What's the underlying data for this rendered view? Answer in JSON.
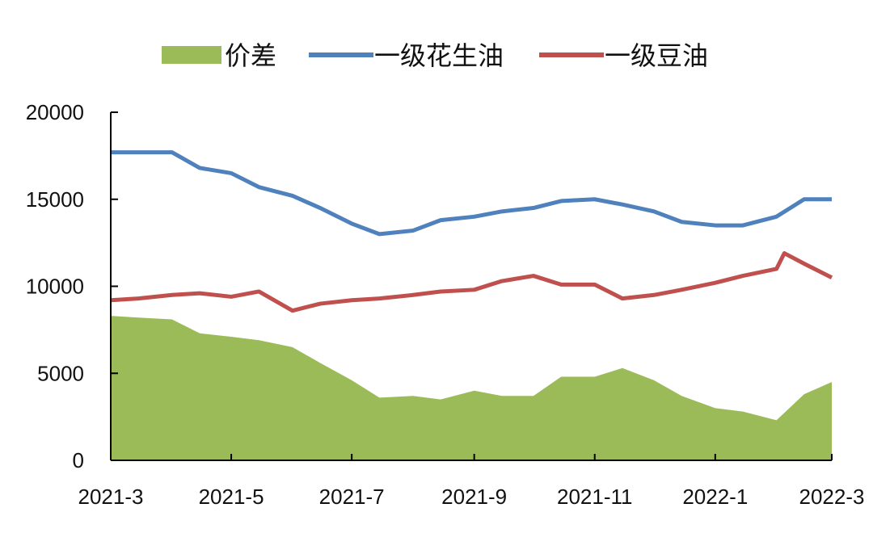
{
  "chart_data": {
    "type": "area+line",
    "title": "",
    "xlabel": "",
    "ylabel": "",
    "ylim": [
      0,
      20000
    ],
    "yticks": [
      0,
      5000,
      10000,
      15000,
      20000
    ],
    "xticks": [
      "2021-3",
      "2021-5",
      "2021-7",
      "2021-9",
      "2021-11",
      "2022-1",
      "2022-3"
    ],
    "grid": false,
    "legend_position": "top",
    "series": [
      {
        "name": "价差",
        "kind": "area",
        "color": "#9bbb59",
        "points": [
          [
            "2021-03-01",
            8300
          ],
          [
            "2021-03-15",
            8200
          ],
          [
            "2021-04-01",
            8100
          ],
          [
            "2021-04-15",
            7300
          ],
          [
            "2021-05-01",
            7100
          ],
          [
            "2021-05-15",
            6900
          ],
          [
            "2021-06-01",
            6500
          ],
          [
            "2021-06-15",
            5600
          ],
          [
            "2021-07-01",
            4600
          ],
          [
            "2021-07-15",
            3600
          ],
          [
            "2021-08-01",
            3700
          ],
          [
            "2021-08-15",
            3500
          ],
          [
            "2021-09-01",
            4000
          ],
          [
            "2021-09-15",
            3700
          ],
          [
            "2021-10-01",
            3700
          ],
          [
            "2021-10-15",
            4800
          ],
          [
            "2021-11-01",
            4800
          ],
          [
            "2021-11-15",
            5300
          ],
          [
            "2021-12-01",
            4600
          ],
          [
            "2021-12-15",
            3700
          ],
          [
            "2022-01-01",
            3000
          ],
          [
            "2022-01-15",
            2800
          ],
          [
            "2022-02-01",
            2300
          ],
          [
            "2022-02-15",
            3800
          ],
          [
            "2022-03-01",
            4500
          ]
        ]
      },
      {
        "name": "一级花生油",
        "kind": "line",
        "color": "#4f81bd",
        "points": [
          [
            "2021-03-01",
            17700
          ],
          [
            "2021-03-15",
            17700
          ],
          [
            "2021-04-01",
            17700
          ],
          [
            "2021-04-15",
            16800
          ],
          [
            "2021-05-01",
            16500
          ],
          [
            "2021-05-15",
            15700
          ],
          [
            "2021-06-01",
            15200
          ],
          [
            "2021-06-15",
            14500
          ],
          [
            "2021-07-01",
            13600
          ],
          [
            "2021-07-15",
            13000
          ],
          [
            "2021-08-01",
            13200
          ],
          [
            "2021-08-15",
            13800
          ],
          [
            "2021-09-01",
            14000
          ],
          [
            "2021-09-15",
            14300
          ],
          [
            "2021-10-01",
            14500
          ],
          [
            "2021-10-15",
            14900
          ],
          [
            "2021-11-01",
            15000
          ],
          [
            "2021-11-15",
            14700
          ],
          [
            "2021-12-01",
            14300
          ],
          [
            "2021-12-15",
            13700
          ],
          [
            "2022-01-01",
            13500
          ],
          [
            "2022-01-15",
            13500
          ],
          [
            "2022-02-01",
            14000
          ],
          [
            "2022-02-15",
            15000
          ],
          [
            "2022-03-01",
            15000
          ]
        ]
      },
      {
        "name": "一级豆油",
        "kind": "line",
        "color": "#c0504d",
        "points": [
          [
            "2021-03-01",
            9200
          ],
          [
            "2021-03-15",
            9300
          ],
          [
            "2021-04-01",
            9500
          ],
          [
            "2021-04-15",
            9600
          ],
          [
            "2021-05-01",
            9400
          ],
          [
            "2021-05-15",
            9700
          ],
          [
            "2021-06-01",
            8600
          ],
          [
            "2021-06-15",
            9000
          ],
          [
            "2021-07-01",
            9200
          ],
          [
            "2021-07-15",
            9300
          ],
          [
            "2021-08-01",
            9500
          ],
          [
            "2021-08-15",
            9700
          ],
          [
            "2021-09-01",
            9800
          ],
          [
            "2021-09-15",
            10300
          ],
          [
            "2021-10-01",
            10600
          ],
          [
            "2021-10-15",
            10100
          ],
          [
            "2021-11-01",
            10100
          ],
          [
            "2021-11-15",
            9300
          ],
          [
            "2021-12-01",
            9500
          ],
          [
            "2021-12-15",
            9800
          ],
          [
            "2022-01-01",
            10200
          ],
          [
            "2022-01-15",
            10600
          ],
          [
            "2022-02-01",
            11000
          ],
          [
            "2022-02-05",
            11900
          ],
          [
            "2022-02-15",
            11300
          ],
          [
            "2022-03-01",
            10500
          ]
        ]
      }
    ]
  }
}
